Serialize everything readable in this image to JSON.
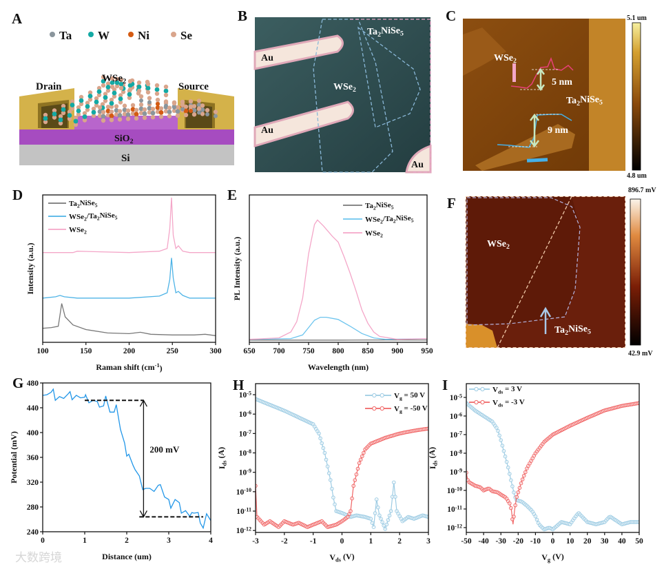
{
  "panels": {
    "A": {
      "label": "A",
      "legend": [
        {
          "name": "Ta",
          "color": "#8a959c"
        },
        {
          "name": "W",
          "color": "#13a9a4"
        },
        {
          "name": "Ni",
          "color": "#d45a12"
        },
        {
          "name": "Se",
          "color": "#d9a58c"
        }
      ],
      "drain": "Drain",
      "source": "Source",
      "channel": "WSe_{2}",
      "oxide": "SiO_{2}",
      "substrate": "Si",
      "colors": {
        "gold": "#d4b24a",
        "sio2": "#a64cc0",
        "si": "#c3c3c3"
      }
    },
    "B": {
      "label": "B",
      "labels": {
        "au1": "Au",
        "au2": "Au",
        "au3": "Au",
        "wse2": "WSe_{2}",
        "tns": "Ta_{2}NiSe_{5}"
      }
    },
    "C": {
      "label": "C",
      "labels": {
        "wse2": "WSe_{2}",
        "tns": "Ta_{2}NiSe_{5}",
        "step1": "5 nm",
        "step2": "9 nm"
      },
      "colorbar": {
        "max": "5.1 um",
        "min": "4.8 um"
      }
    },
    "F": {
      "label": "F",
      "labels": {
        "wse2": "WSe_{2}",
        "tns": "Ta_{2}NiSe_{5}"
      },
      "colorbar": {
        "max": "896.7 mV",
        "min": "42.9 mV"
      }
    }
  },
  "chart_data": [
    {
      "panel": "D",
      "type": "line",
      "xlabel": "Raman shift (cm^{-1})",
      "ylabel": "Intensity (a.u.)",
      "xlim": [
        100,
        300
      ],
      "ylim": [
        0,
        110
      ],
      "xticks": [
        100,
        150,
        200,
        250,
        300
      ],
      "yticks": [],
      "legend_placement": "top-left",
      "series": [
        {
          "name": "Ta_{2}NiSe_{5}",
          "color": "#777777",
          "x": [
            100,
            110,
            118,
            122,
            126,
            135,
            150,
            175,
            200,
            213,
            225,
            250,
            275,
            288,
            300
          ],
          "y": [
            10.5,
            11,
            12,
            29,
            19,
            13,
            9.5,
            7,
            6.5,
            7.5,
            6,
            5.5,
            5.5,
            6,
            5
          ]
        },
        {
          "name": "WSe_{2}/Ta_{2}NiSe_{5}",
          "color": "#4db3e6",
          "x": [
            100,
            115,
            120,
            125,
            140,
            200,
            235,
            244,
            247,
            249,
            251,
            254,
            257,
            262,
            270,
            300
          ],
          "y": [
            33,
            34,
            35,
            34,
            33,
            33,
            34.5,
            37,
            47,
            63,
            48,
            37,
            38,
            35,
            33,
            33
          ]
        },
        {
          "name": "WSe_{2}",
          "color": "#f4a6c8",
          "x": [
            100,
            135,
            140,
            200,
            235,
            244,
            247,
            249,
            251,
            254,
            257,
            262,
            270,
            300
          ],
          "y": [
            67,
            67,
            68,
            67,
            68,
            70,
            85,
            108,
            80,
            70,
            72,
            68,
            67,
            67
          ]
        }
      ]
    },
    {
      "panel": "E",
      "type": "line",
      "xlabel": "Wavelength (nm)",
      "ylabel": "PL Intensity (a.u.)",
      "xlim": [
        650,
        950
      ],
      "ylim": [
        0,
        100
      ],
      "xticks": [
        650,
        700,
        750,
        800,
        850,
        900,
        950
      ],
      "yticks": [],
      "legend_placement": "top-right",
      "series": [
        {
          "name": "Ta_{2}NiSe_{5}",
          "color": "#777777",
          "x": [
            650,
            700,
            750,
            800,
            850,
            900,
            950
          ],
          "y": [
            1.5,
            1.5,
            1.5,
            1.5,
            1.6,
            1.6,
            1.6
          ]
        },
        {
          "name": "WSe_{2}/Ta_{2}NiSe_{5}",
          "color": "#6cc4ee",
          "x": [
            650,
            720,
            740,
            750,
            760,
            770,
            780,
            800,
            820,
            840,
            860,
            880,
            950
          ],
          "y": [
            2,
            2.5,
            5,
            10,
            15,
            17,
            17,
            15.5,
            11,
            6,
            3,
            2,
            2.5
          ]
        },
        {
          "name": "WSe_{2}",
          "color": "#f4a6c8",
          "x": [
            650,
            700,
            720,
            730,
            740,
            750,
            760,
            765,
            775,
            790,
            800,
            810,
            820,
            830,
            840,
            850,
            860,
            870,
            900,
            950
          ],
          "y": [
            2,
            3,
            7,
            14,
            30,
            60,
            80,
            83,
            79,
            72,
            68,
            58,
            47,
            35,
            22,
            13,
            7,
            4,
            2,
            2.5
          ]
        }
      ]
    },
    {
      "panel": "G",
      "type": "line",
      "xlabel": "Distance (um)",
      "ylabel": "Potential (mV)",
      "xlim": [
        0,
        4
      ],
      "ylim": [
        240,
        480
      ],
      "xticks": [
        0,
        1,
        2,
        3,
        4
      ],
      "yticks": [
        240,
        280,
        320,
        360,
        400,
        440,
        480
      ],
      "series": [
        {
          "name": "potential",
          "color": "#2196e8",
          "x": [
            0,
            0.1,
            0.2,
            0.25,
            0.3,
            0.4,
            0.5,
            0.6,
            0.65,
            0.7,
            0.8,
            0.9,
            1.0,
            1.02,
            1.1,
            1.2,
            1.3,
            1.35,
            1.45,
            1.5,
            1.6,
            1.7,
            1.75,
            1.85,
            1.95,
            2.0,
            2.05,
            2.15,
            2.2,
            2.3,
            2.38,
            2.45,
            2.55,
            2.65,
            2.75,
            2.8,
            2.9,
            3.0,
            3.05,
            3.15,
            3.25,
            3.3,
            3.4,
            3.5,
            3.55,
            3.6,
            3.7,
            3.75,
            3.82,
            3.9,
            4.0
          ],
          "y": [
            460,
            461,
            465,
            470,
            452,
            458,
            455,
            462,
            466,
            453,
            460,
            456,
            457,
            461,
            448,
            452,
            450,
            441,
            443,
            459,
            433,
            433,
            445,
            405,
            383,
            362,
            365,
            347,
            340,
            330,
            308,
            310,
            310,
            305,
            315,
            316,
            296,
            292,
            278,
            292,
            287,
            270,
            274,
            265,
            271,
            270,
            271,
            254,
            246,
            269,
            258
          ]
        }
      ],
      "annotations": {
        "dashed": [
          {
            "y": 452,
            "x": [
              1.0,
              2.4
            ]
          },
          {
            "y": 264,
            "x": [
              2.3,
              3.82
            ]
          }
        ],
        "arrow": {
          "x": 2.4,
          "y": [
            452,
            264
          ]
        },
        "label": {
          "text": "200 mV",
          "x": 2.9,
          "y": 372
        }
      }
    },
    {
      "panel": "H",
      "type": "line",
      "yscale": "log",
      "xlabel": "V_{ds} (V)",
      "ylabel": "I_{ds} (A)",
      "xlim": [
        -3,
        3
      ],
      "ylim_exp": [
        -12.1,
        -4.43
      ],
      "xticks": [
        -3,
        -2,
        -1,
        0,
        1,
        2,
        3
      ],
      "ytick_exps": [
        -12,
        -11,
        -10,
        -9,
        -8,
        -7,
        -6,
        -5
      ],
      "legend_placement": "top-right",
      "series": [
        {
          "name": "V_{g} =  50 V",
          "color": "#9ccbe3",
          "x": [
            -3,
            -2,
            -1,
            -0.8,
            -0.6,
            -0.5,
            -0.4,
            -0.3,
            -0.2,
            0,
            0.3,
            0.5,
            0.8,
            1,
            1.1,
            1.2,
            1.3,
            1.5,
            1.7,
            1.8,
            1.9,
            2.1,
            2.3,
            2.5,
            2.8,
            3
          ],
          "y": [
            6e-06,
            1.5e-06,
            3e-07,
            1e-07,
            1e-08,
            2e-09,
            4e-10,
            5e-11,
            1e-11,
            8e-12,
            5e-12,
            6e-12,
            5e-12,
            4e-12,
            1.5e-12,
            4e-11,
            6e-12,
            1.2e-12,
            1e-11,
            3e-10,
            1e-11,
            3e-12,
            5e-12,
            4e-12,
            6e-12,
            5e-12
          ]
        },
        {
          "name": "V_{g} = -50 V",
          "color": "#f06565",
          "x": [
            -3,
            -2.95,
            -2.7,
            -2.5,
            -2.2,
            -2,
            -1.7,
            -1.5,
            -1.2,
            -1,
            -0.7,
            -0.5,
            -0.2,
            0,
            0.2,
            0.3,
            0.4,
            0.6,
            0.8,
            1,
            1.5,
            2,
            2.5,
            3
          ],
          "y": [
            2e-10,
            5e-12,
            2e-12,
            3e-12,
            1.5e-12,
            3e-12,
            2e-12,
            2.5e-12,
            1.5e-12,
            2e-12,
            3e-12,
            1.5e-12,
            2e-12,
            3e-12,
            5e-12,
            1e-11,
            2e-10,
            3e-09,
            1.5e-08,
            3e-08,
            6e-08,
            1e-07,
            1.4e-07,
            1.8e-07
          ]
        }
      ]
    },
    {
      "panel": "I",
      "type": "line",
      "yscale": "log",
      "xlabel": "V_{g} (V)",
      "ylabel": "I_{ds} (A)",
      "xlim": [
        -50,
        50
      ],
      "ylim_exp": [
        -12.26,
        -4.26
      ],
      "xticks": [
        -50,
        -40,
        -30,
        -20,
        -10,
        0,
        10,
        20,
        30,
        40,
        50
      ],
      "ytick_exps": [
        -12,
        -11,
        -10,
        -9,
        -8,
        -7,
        -6,
        -5
      ],
      "legend_placement": "top-left",
      "series": [
        {
          "name": "V_{ds} =  3 V",
          "color": "#9ccbe3",
          "x": [
            -50,
            -45,
            -40,
            -35,
            -32,
            -30,
            -28,
            -26,
            -24,
            -22,
            -21,
            -18,
            -15,
            -12,
            -10,
            -8,
            -5,
            -2,
            0,
            5,
            10,
            14,
            15,
            20,
            25,
            30,
            33,
            40,
            45,
            50
          ],
          "y": [
            5e-06,
            2e-06,
            1e-06,
            5e-07,
            2e-07,
            5e-08,
            1e-08,
            2e-09,
            3e-10,
            5e-11,
            3e-11,
            2.5e-11,
            1.5e-11,
            8e-12,
            4e-12,
            1.5e-12,
            8e-13,
            1e-12,
            8e-13,
            2e-12,
            1.5e-12,
            5e-12,
            6e-12,
            2e-12,
            1.5e-12,
            2e-12,
            4e-12,
            1.5e-12,
            2e-12,
            2e-12
          ]
        },
        {
          "name": "V_{ds} = -3 V",
          "color": "#f06565",
          "x": [
            -50,
            -49,
            -45,
            -42,
            -40,
            -37,
            -35,
            -32,
            -30,
            -27,
            -25,
            -24,
            -23,
            -22,
            -21,
            -18,
            -15,
            -10,
            -5,
            0,
            10,
            20,
            30,
            40,
            50
          ],
          "y": [
            9e-10,
            3e-10,
            1.8e-10,
            1.5e-10,
            1e-10,
            1.3e-10,
            9e-11,
            8e-11,
            6e-11,
            4e-11,
            2e-11,
            1e-11,
            1.5e-12,
            1e-11,
            4e-11,
            3e-10,
            1.5e-09,
            1e-08,
            4e-08,
            1e-07,
            3e-07,
            8e-07,
            2e-06,
            3.5e-06,
            5e-06
          ]
        }
      ]
    }
  ],
  "watermark": "大数跨境"
}
